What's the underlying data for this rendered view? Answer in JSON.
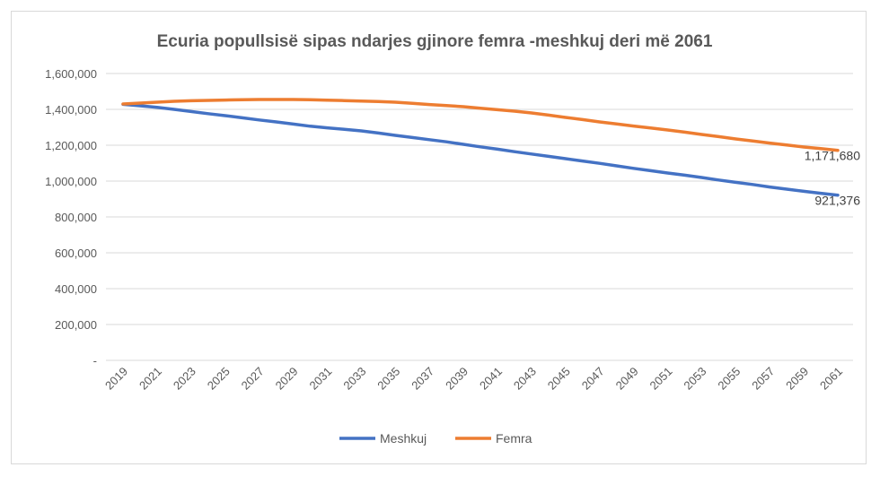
{
  "chart_data": {
    "type": "line",
    "title": "Ecuria popullsisë sipas ndarjes gjinore femra -meshkuj deri më 2061",
    "xlabel": "",
    "ylabel": "",
    "ylim": [
      0,
      1600000
    ],
    "yticks": [
      0,
      200000,
      400000,
      600000,
      800000,
      1000000,
      1200000,
      1400000,
      1600000
    ],
    "ytick_labels": [
      "-",
      "200,000",
      "400,000",
      "600,000",
      "800,000",
      "1,000,000",
      "1,200,000",
      "1,400,000",
      "1,600,000"
    ],
    "xtick_labels": [
      "2019",
      "2021",
      "2023",
      "2025",
      "2027",
      "2029",
      "2031",
      "2033",
      "2035",
      "2037",
      "2039",
      "2041",
      "2043",
      "2045",
      "2047",
      "2049",
      "2051",
      "2053",
      "2055",
      "2057",
      "2059",
      "2061"
    ],
    "grid": true,
    "legend_position": "bottom",
    "x": [
      2019,
      2020,
      2021,
      2022,
      2023,
      2024,
      2025,
      2026,
      2027,
      2028,
      2029,
      2030,
      2031,
      2032,
      2033,
      2034,
      2035,
      2036,
      2037,
      2038,
      2039,
      2040,
      2041,
      2042,
      2043,
      2044,
      2045,
      2046,
      2047,
      2048,
      2049,
      2050,
      2051,
      2052,
      2053,
      2054,
      2055,
      2056,
      2057,
      2058,
      2059,
      2060,
      2061
    ],
    "series": [
      {
        "name": "Meshkuj",
        "color": "#4472c4",
        "values": [
          1428000,
          1420000,
          1411000,
          1400000,
          1388000,
          1376000,
          1365000,
          1353000,
          1341000,
          1330000,
          1318000,
          1306000,
          1297000,
          1289000,
          1280000,
          1268000,
          1255000,
          1243000,
          1231000,
          1219000,
          1205000,
          1191000,
          1178000,
          1164000,
          1151000,
          1138000,
          1125000,
          1112000,
          1099000,
          1085000,
          1071000,
          1058000,
          1045000,
          1033000,
          1020000,
          1006000,
          993000,
          981000,
          967000,
          955000,
          943000,
          932000,
          921376
        ],
        "end_label": "921,376"
      },
      {
        "name": "Femra",
        "color": "#ed7d31",
        "values": [
          1430000,
          1435000,
          1440000,
          1445000,
          1448000,
          1450000,
          1452000,
          1454000,
          1455000,
          1455000,
          1455000,
          1454000,
          1451000,
          1449000,
          1446000,
          1444000,
          1440000,
          1434000,
          1427000,
          1421000,
          1415000,
          1406000,
          1398000,
          1390000,
          1380000,
          1368000,
          1355000,
          1343000,
          1330000,
          1319000,
          1307000,
          1296000,
          1285000,
          1273000,
          1260000,
          1248000,
          1235000,
          1224000,
          1212000,
          1201000,
          1190000,
          1181000,
          1171680
        ],
        "end_label": "1,171,680"
      }
    ]
  }
}
